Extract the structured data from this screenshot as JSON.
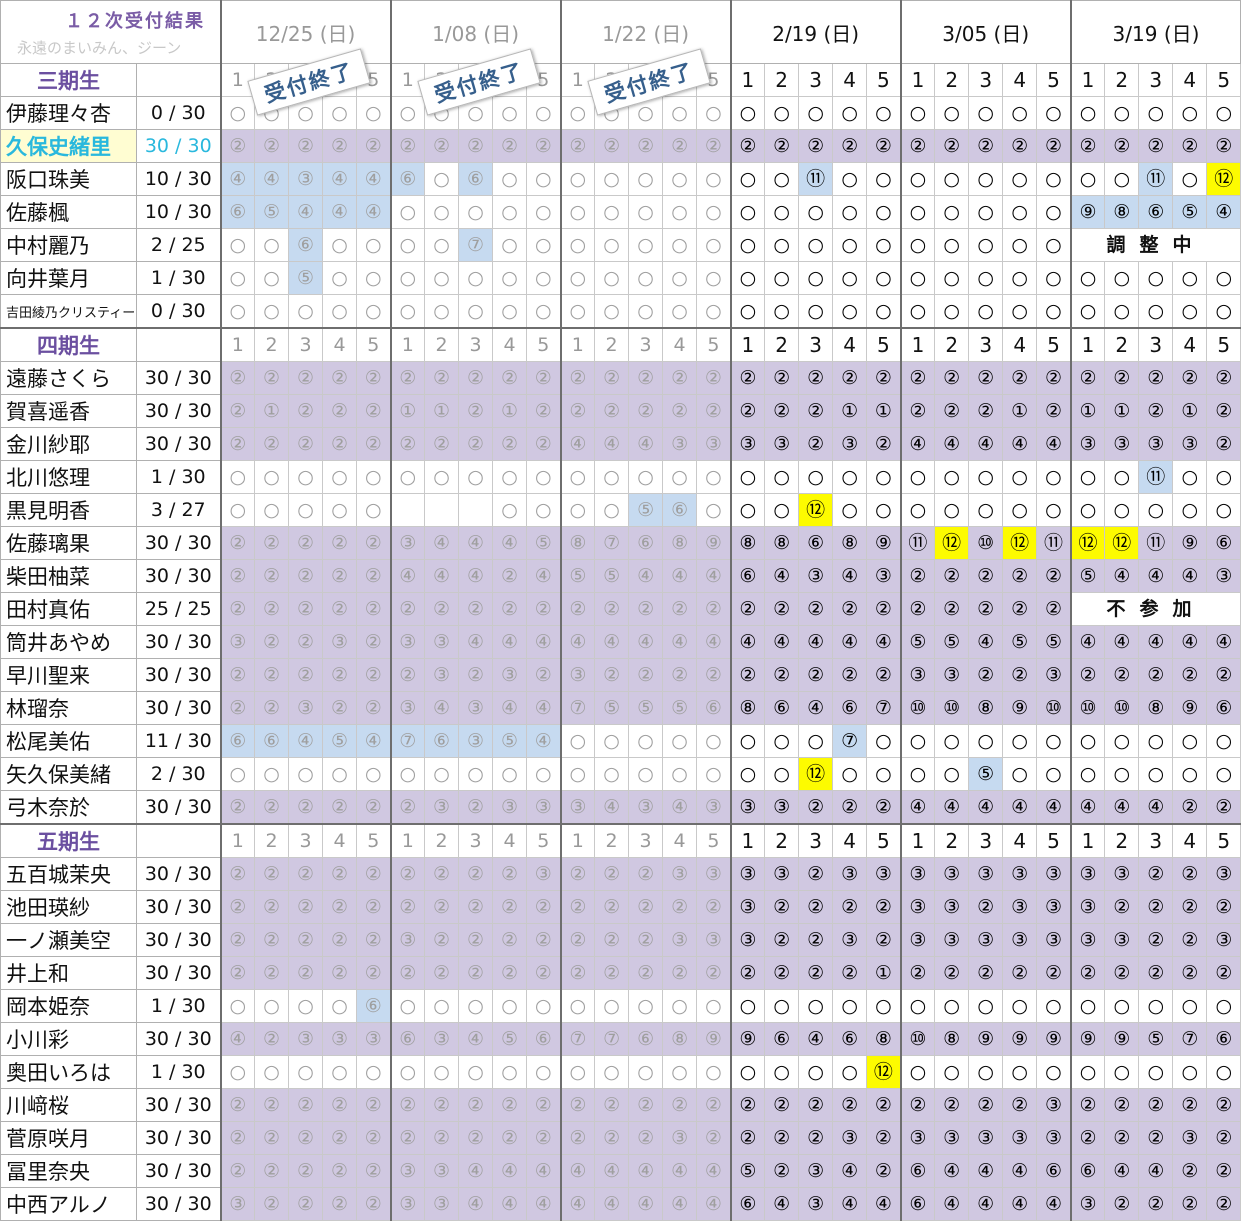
{
  "title": "１２次受付結果",
  "subtitle": "永遠のまいみん、ジーン",
  "colors": {
    "purple": "#d0c8e1",
    "blue": "#c6daf0",
    "yellow": "#fdfb00",
    "highlight_name": "#29b8dd"
  },
  "dates": [
    {
      "label": "12/25 (日)",
      "closed": true
    },
    {
      "label": "1/08 (日)",
      "closed": true
    },
    {
      "label": "1/22 (日)",
      "closed": true
    },
    {
      "label": "2/19 (日)",
      "closed": false
    },
    {
      "label": "3/05 (日)",
      "closed": false
    },
    {
      "label": "3/19 (日)",
      "closed": false
    }
  ],
  "slots": [
    "1",
    "2",
    "3",
    "4",
    "5"
  ],
  "stamp_text": "受付終了",
  "sections": [
    {
      "name": "三期生",
      "members": [
        {
          "name": "伊藤理々杏",
          "count": "0 / 30",
          "cells": "○○○○○|○○○○○|○○○○○|○○○○○|○○○○○|○○○○○",
          "bg": "wwwww|wwwww|wwwww|wwwww|wwwww|wwwww"
        },
        {
          "name": "久保史緒里",
          "count": "30 / 30",
          "highlight": true,
          "cells": "②②②②②|②②②②②|②②②②②|②②②②②|②②②②②|②②②②②",
          "bg": "ppppp|ppppp|ppppp|ppppp|ppppp|ppppp"
        },
        {
          "name": "阪口珠美",
          "count": "10 / 30",
          "cells": "④④③④④|⑥○⑥○○|○○○○○|○○⑪○○|○○○○○|○○⑪○⑫",
          "bg": "bbbbb|bwbww|wwwww|wwbww|wwwww|wwbwy"
        },
        {
          "name": "佐藤楓",
          "count": "10 / 30",
          "cells": "⑥⑤④④④|○○○○○|○○○○○|○○○○○|○○○○○|⑨⑧⑥⑤④",
          "bg": "bbbbb|wwwww|wwwww|wwwww|wwwww|bbbbb"
        },
        {
          "name": "中村麗乃",
          "count": "2 / 25",
          "cells": "○○⑥○○|○○⑦○○|○○○○○|○○○○○|○○○○○|",
          "bg": "wwbww|wwbww|wwwww|wwwww|wwwww|",
          "merged": "調整中"
        },
        {
          "name": "向井葉月",
          "count": "1 / 30",
          "cells": "○○⑤○○|○○○○○|○○○○○|○○○○○|○○○○○|○○○○○",
          "bg": "wwbww|wwwww|wwwww|wwwww|wwwww|wwwww"
        },
        {
          "name": "吉田綾乃クリスティー",
          "count": "0 / 30",
          "small": true,
          "cells": "○○○○○|○○○○○|○○○○○|○○○○○|○○○○○|○○○○○",
          "bg": "wwwww|wwwww|wwwww|wwwww|wwwww|wwwww"
        }
      ]
    },
    {
      "name": "四期生",
      "members": [
        {
          "name": "遠藤さくら",
          "count": "30 / 30",
          "cells": "②②②②②|②②②②②|②②②②②|②②②②②|②②②②②|②②②②②",
          "bg": "ppppp|ppppp|ppppp|ppppp|ppppp|ppppp"
        },
        {
          "name": "賀喜遥香",
          "count": "30 / 30",
          "cells": "②①②②②|①①②①②|②②②②②|②②②①①|②②②①②|①①②①②",
          "bg": "ppppp|ppppp|ppppp|ppppp|ppppp|ppppp"
        },
        {
          "name": "金川紗耶",
          "count": "30 / 30",
          "cells": "②②②②②|②②②②②|④④④③③|③③②③②|④④④④④|③③③③②",
          "bg": "ppppp|ppppp|ppppp|ppppp|ppppp|ppppp"
        },
        {
          "name": "北川悠理",
          "count": "1 / 30",
          "cells": "○○○○○|○○○○○|○○○○○|○○○○○|○○○○○|○○⑪○○",
          "bg": "wwwww|wwwww|wwwww|wwwww|wwwww|wwbww"
        },
        {
          "name": "黒見明香",
          "count": "3 / 27",
          "cells": "○○○○○|   ○○|○○⑤⑥○|○○⑫○○|○○○○○|○○○○○",
          "bg": "wwwww|wwwww|wwbbw|wwyww|wwwww|wwwww"
        },
        {
          "name": "佐藤璃果",
          "count": "30 / 30",
          "cells": "②②②②②|③④④④⑤|⑧⑦⑥⑧⑨|⑧⑧⑥⑧⑨|⑪⑫⑩⑫⑪|⑫⑫⑪⑨⑥",
          "bg": "ppppp|ppppp|ppppp|ppppp|pypyp|yyppp"
        },
        {
          "name": "柴田柚菜",
          "count": "30 / 30",
          "cells": "②②②②②|④④④②④|⑤⑤④④④|⑥④③④③|②②②②②|⑤④④④③",
          "bg": "ppppp|ppppp|ppppp|ppppp|ppppp|ppppp"
        },
        {
          "name": "田村真佑",
          "count": "25 / 25",
          "cells": "②②②②②|②②②②②|②②②②②|②②②②②|②②②②②|",
          "bg": "ppppp|ppppp|ppppp|ppppp|ppppp|",
          "merged": "不参加"
        },
        {
          "name": "筒井あやめ",
          "count": "30 / 30",
          "cells": "③②②③②|③③④④④|④④④④④|④④④④④|⑤⑤④⑤⑤|④④④④④",
          "bg": "ppppp|ppppp|ppppp|ppppp|ppppp|ppppp"
        },
        {
          "name": "早川聖来",
          "count": "30 / 30",
          "cells": "②②②②②|②③②③②|③②②②②|②②②②②|③③②②③|②②②②②",
          "bg": "ppppp|ppppp|ppppp|ppppp|ppppp|ppppp"
        },
        {
          "name": "林瑠奈",
          "count": "30 / 30",
          "cells": "②②③②②|③④③④④|⑦⑤⑤⑤⑥|⑧⑥④⑥⑦|⑩⑩⑧⑨⑩|⑩⑩⑧⑨⑥",
          "bg": "ppppp|ppppp|ppppp|ppppp|ppppp|ppppp"
        },
        {
          "name": "松尾美佑",
          "count": "11 / 30",
          "cells": "⑥⑥④⑤④|⑦⑥③⑤④|○○○○○|○○○⑦○|○○○○○|○○○○○",
          "bg": "bbbbb|bbbbb|wwwww|wwwbw|wwwww|wwwww"
        },
        {
          "name": "矢久保美緒",
          "count": "2 / 30",
          "cells": "○○○○○|○○○○○|○○○○○|○○⑫○○|○○⑤○○|○○○○○",
          "bg": "wwwww|wwwww|wwwww|wwyww|wwbww|wwwww"
        },
        {
          "name": "弓木奈於",
          "count": "30 / 30",
          "cells": "②②②②②|②③②③③|③④③④③|③③②②②|④④④④④|④④④②②",
          "bg": "ppppp|ppppp|ppppp|ppppp|ppppp|ppppp"
        }
      ]
    },
    {
      "name": "五期生",
      "members": [
        {
          "name": "五百城茉央",
          "count": "30 / 30",
          "cells": "②②②②②|②②②②③|②②②③③|③③②③③|③③③③③|③③②②③",
          "bg": "ppppp|ppppp|ppppp|ppppp|ppppp|ppppp"
        },
        {
          "name": "池田瑛紗",
          "count": "30 / 30",
          "cells": "②②②②②|②②②②②|②②②②②|③②②②②|③③②③③|③②②②②",
          "bg": "ppppp|ppppp|ppppp|ppppp|ppppp|ppppp"
        },
        {
          "name": "一ノ瀬美空",
          "count": "30 / 30",
          "cells": "②②②②②|③②②②②|②②②③③|③②②③②|③③③③③|③③②②③",
          "bg": "ppppp|ppppp|ppppp|ppppp|ppppp|ppppp"
        },
        {
          "name": "井上和",
          "count": "30 / 30",
          "cells": "②②②②②|②②②②②|②②②②②|②②②②①|②②②②②|②②②②②",
          "bg": "ppppp|ppppp|ppppp|ppppp|ppppp|ppppp"
        },
        {
          "name": "岡本姫奈",
          "count": "1 / 30",
          "cells": "○○○○⑥|○○○○○|○○○○○|○○○○○|○○○○○|○○○○○",
          "bg": "wwwwb|wwwww|wwwww|wwwww|wwwww|wwwww"
        },
        {
          "name": "小川彩",
          "count": "30 / 30",
          "cells": "④②③③③|⑥③④⑤⑥|⑦⑦⑥⑧⑨|⑨⑥④⑥⑧|⑩⑧⑨⑨⑨|⑨⑨⑤⑦⑥",
          "bg": "ppppp|ppppp|ppppp|ppppp|ppppp|ppppp"
        },
        {
          "name": "奥田いろは",
          "count": "1 / 30",
          "cells": "○○○○○|○○○○○|○○○○○|○○○○⑫|○○○○○|○○○○○",
          "bg": "wwwww|wwwww|wwwww|wwwwy|wwwww|wwwww"
        },
        {
          "name": "川﨑桜",
          "count": "30 / 30",
          "cells": "②②②②②|②②②②②|②②②②②|②②②②②|②②②②③|②②②②②",
          "bg": "ppppp|ppppp|ppppp|ppppp|ppppp|ppppp"
        },
        {
          "name": "菅原咲月",
          "count": "30 / 30",
          "cells": "②②②②②|②②②②②|②②②③②|②②②③②|③③③③③|②②②③②",
          "bg": "ppppp|ppppp|ppppp|ppppp|ppppp|ppppp"
        },
        {
          "name": "冨里奈央",
          "count": "30 / 30",
          "cells": "②②②②②|③③④④④|④④④④④|⑤②③④②|⑥④④④⑥|⑥④④②②",
          "bg": "ppppp|ppppp|ppppp|ppppp|ppppp|ppppp"
        },
        {
          "name": "中西アルノ",
          "count": "30 / 30",
          "cells": "③②②②②|③③④④④|④④④④④|⑥④③④④|⑥④④④④|③②②②②",
          "bg": "ppppp|ppppp|ppppp|ppppp|ppppp|ppppp"
        }
      ]
    }
  ]
}
